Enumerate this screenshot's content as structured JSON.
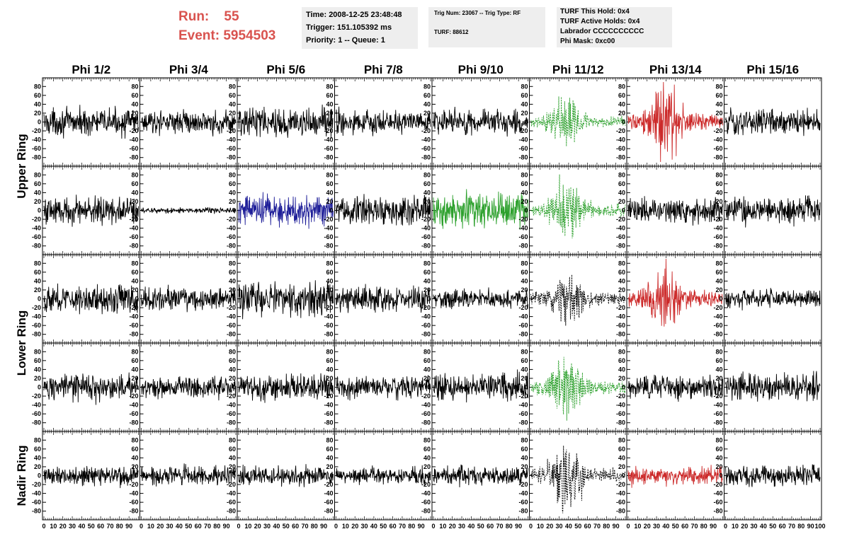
{
  "header": {
    "run_label": "Run:",
    "run_value": "55",
    "event_label": "Event:",
    "event_value": "5954503",
    "time": "Time: 2008-12-25 23:48:48",
    "trigger": "Trigger: 151.105392 ms",
    "priority": "Priority: 1 -- Queue: 1",
    "trig_num": "Trig Num: 23067 -- Trig Type: RF",
    "turf": "TURF: 88612",
    "turf_this_hold": "TURF This Hold: 0x4",
    "turf_active_holds": "TURF Active Holds: 0x4",
    "labrador": "Labrador CCCCCCCCCC",
    "phi_mask": "Phi Mask: 0xc00"
  },
  "colors": {
    "header_red": "#d9534f",
    "black": "#000000",
    "green": "#2ca02c",
    "blue": "#1f1f99",
    "red": "#cc2a2a"
  },
  "chart_data": {
    "type": "line",
    "columns": [
      "Phi 1/2",
      "Phi 3/4",
      "Phi 5/6",
      "Phi 7/8",
      "Phi 9/10",
      "Phi 11/12",
      "Phi 13/14",
      "Phi 15/16"
    ],
    "ring_labels": [
      "Upper Ring",
      "Lower Ring",
      "Nadir Ring"
    ],
    "ring_spans": [
      [
        0,
        2
      ],
      [
        2,
        4
      ],
      [
        4,
        5
      ]
    ],
    "xlim": [
      0,
      100
    ],
    "ylim": [
      -90,
      90
    ],
    "y_ticks": [
      80,
      60,
      40,
      20,
      0,
      -20,
      -40,
      -60,
      -80
    ],
    "x_tick_labels": [
      "0",
      "10",
      "20",
      "30",
      "40",
      "50",
      "60",
      "70",
      "80",
      "90",
      "100"
    ],
    "grid": false,
    "panels": [
      [
        {
          "color": "black",
          "amp": 14,
          "style": "solid",
          "burst": 0
        },
        {
          "color": "black",
          "amp": 12,
          "style": "solid",
          "burst": 0
        },
        {
          "color": "black",
          "amp": 16,
          "style": "solid",
          "burst": 0
        },
        {
          "color": "black",
          "amp": 13,
          "style": "solid",
          "burst": 0
        },
        {
          "color": "black",
          "amp": 14,
          "style": "solid",
          "burst": 0
        },
        {
          "color": "green",
          "amp": 10,
          "style": "dashed",
          "burst": 1
        },
        {
          "color": "red",
          "amp": 16,
          "style": "solid",
          "burst": 1
        },
        {
          "color": "black",
          "amp": 14,
          "style": "solid",
          "burst": 0
        }
      ],
      [
        {
          "color": "black",
          "amp": 15,
          "style": "solid",
          "burst": 0
        },
        {
          "color": "black",
          "amp": 3,
          "style": "solid",
          "burst": 0
        },
        {
          "color": "blue",
          "amp": 17,
          "style": "solid",
          "burst": 0
        },
        {
          "color": "black",
          "amp": 16,
          "style": "solid",
          "burst": 0
        },
        {
          "color": "green",
          "amp": 19,
          "style": "solid",
          "burst": 0
        },
        {
          "color": "green",
          "amp": 12,
          "style": "dashed",
          "burst": 1
        },
        {
          "color": "black",
          "amp": 13,
          "style": "solid",
          "burst": 0
        },
        {
          "color": "black",
          "amp": 14,
          "style": "solid",
          "burst": 0
        }
      ],
      [
        {
          "color": "black",
          "amp": 15,
          "style": "solid",
          "burst": 0
        },
        {
          "color": "black",
          "amp": 12,
          "style": "solid",
          "burst": 0
        },
        {
          "color": "black",
          "amp": 18,
          "style": "solid",
          "burst": 0
        },
        {
          "color": "black",
          "amp": 13,
          "style": "solid",
          "burst": 0
        },
        {
          "color": "black",
          "amp": 10,
          "style": "solid",
          "burst": 0
        },
        {
          "color": "black",
          "amp": 12,
          "style": "dashed",
          "burst": 1
        },
        {
          "color": "red",
          "amp": 14,
          "style": "solid",
          "burst": 1
        },
        {
          "color": "black",
          "amp": 10,
          "style": "solid",
          "burst": 0
        }
      ],
      [
        {
          "color": "black",
          "amp": 14,
          "style": "solid",
          "burst": 0
        },
        {
          "color": "black",
          "amp": 12,
          "style": "solid",
          "burst": 0
        },
        {
          "color": "black",
          "amp": 14,
          "style": "solid",
          "burst": 0
        },
        {
          "color": "black",
          "amp": 12,
          "style": "solid",
          "burst": 0
        },
        {
          "color": "black",
          "amp": 14,
          "style": "solid",
          "burst": 0
        },
        {
          "color": "green",
          "amp": 12,
          "style": "dashed",
          "burst": 1
        },
        {
          "color": "black",
          "amp": 12,
          "style": "solid",
          "burst": 0
        },
        {
          "color": "black",
          "amp": 14,
          "style": "solid",
          "burst": 0
        }
      ],
      [
        {
          "color": "black",
          "amp": 11,
          "style": "solid",
          "burst": 0
        },
        {
          "color": "black",
          "amp": 10,
          "style": "solid",
          "burst": 0
        },
        {
          "color": "black",
          "amp": 10,
          "style": "solid",
          "burst": 0
        },
        {
          "color": "black",
          "amp": 9,
          "style": "solid",
          "burst": 0
        },
        {
          "color": "black",
          "amp": 10,
          "style": "solid",
          "burst": 0
        },
        {
          "color": "black",
          "amp": 14,
          "style": "dashed",
          "burst": 1
        },
        {
          "color": "red",
          "amp": 10,
          "style": "solid",
          "burst": 0
        },
        {
          "color": "black",
          "amp": 11,
          "style": "solid",
          "burst": 0
        }
      ]
    ]
  }
}
